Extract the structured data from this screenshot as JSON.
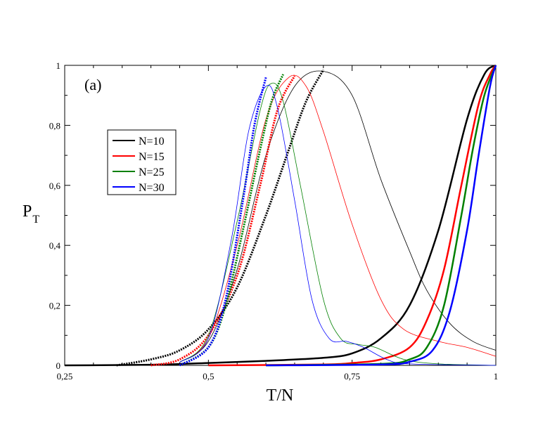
{
  "chart_data": {
    "type": "line",
    "panel_label": "(a)",
    "xlabel": "T/N",
    "ylabel_main": "P",
    "ylabel_sub": "T",
    "xlim": [
      0.25,
      1.0
    ],
    "ylim": [
      0,
      1.0
    ],
    "xticks": [
      0.25,
      0.5,
      0.75,
      1.0
    ],
    "xtick_labels": [
      "0,25",
      "0,5",
      "0,75",
      "1"
    ],
    "yticks": [
      0,
      0.2,
      0.4,
      0.6,
      0.8,
      1.0
    ],
    "ytick_labels": [
      "0",
      "0,2",
      "0,4",
      "0,6",
      "0,8",
      "1"
    ],
    "legend_position": "upper-left",
    "series": [
      {
        "name": "N=10",
        "color": "#000000",
        "thick_curve": [
          [
            0.25,
            0
          ],
          [
            0.4,
            0.002
          ],
          [
            0.5,
            0.008
          ],
          [
            0.6,
            0.015
          ],
          [
            0.7,
            0.025
          ],
          [
            0.75,
            0.04
          ],
          [
            0.8,
            0.09
          ],
          [
            0.85,
            0.2
          ],
          [
            0.9,
            0.45
          ],
          [
            0.95,
            0.82
          ],
          [
            0.98,
            0.97
          ],
          [
            1.0,
            1.0
          ]
        ],
        "dotted_rise": [
          [
            0.34,
            0
          ],
          [
            0.4,
            0.02
          ],
          [
            0.45,
            0.05
          ],
          [
            0.5,
            0.12
          ],
          [
            0.55,
            0.26
          ],
          [
            0.6,
            0.5
          ],
          [
            0.64,
            0.72
          ],
          [
            0.67,
            0.88
          ],
          [
            0.7,
            0.985
          ]
        ],
        "thin_peak": [
          [
            0.45,
            0.01
          ],
          [
            0.5,
            0.08
          ],
          [
            0.55,
            0.32
          ],
          [
            0.6,
            0.7
          ],
          [
            0.65,
            0.93
          ],
          [
            0.7,
            0.98
          ],
          [
            0.75,
            0.9
          ],
          [
            0.8,
            0.62
          ],
          [
            0.85,
            0.38
          ],
          [
            0.88,
            0.25
          ],
          [
            0.92,
            0.14
          ],
          [
            0.96,
            0.08
          ],
          [
            1.0,
            0.05
          ]
        ]
      },
      {
        "name": "N=15",
        "color": "#ff0000",
        "thick_curve": [
          [
            0.5,
            0
          ],
          [
            0.7,
            0.003
          ],
          [
            0.75,
            0.008
          ],
          [
            0.8,
            0.02
          ],
          [
            0.85,
            0.06
          ],
          [
            0.88,
            0.15
          ],
          [
            0.91,
            0.32
          ],
          [
            0.94,
            0.6
          ],
          [
            0.97,
            0.87
          ],
          [
            0.99,
            0.97
          ],
          [
            1.0,
            1.0
          ]
        ],
        "dotted_rise": [
          [
            0.4,
            0
          ],
          [
            0.45,
            0.02
          ],
          [
            0.5,
            0.1
          ],
          [
            0.55,
            0.3
          ],
          [
            0.59,
            0.6
          ],
          [
            0.62,
            0.85
          ],
          [
            0.65,
            0.965
          ]
        ],
        "thin_peak": [
          [
            0.45,
            0.01
          ],
          [
            0.5,
            0.09
          ],
          [
            0.55,
            0.4
          ],
          [
            0.6,
            0.82
          ],
          [
            0.64,
            0.96
          ],
          [
            0.67,
            0.93
          ],
          [
            0.7,
            0.78
          ],
          [
            0.75,
            0.47
          ],
          [
            0.8,
            0.22
          ],
          [
            0.84,
            0.12
          ],
          [
            0.9,
            0.08
          ],
          [
            0.95,
            0.06
          ],
          [
            1.0,
            0.03
          ]
        ]
      },
      {
        "name": "N=25",
        "color": "#008000",
        "thick_curve": [
          [
            0.6,
            0
          ],
          [
            0.8,
            0.005
          ],
          [
            0.85,
            0.02
          ],
          [
            0.88,
            0.06
          ],
          [
            0.91,
            0.2
          ],
          [
            0.94,
            0.5
          ],
          [
            0.96,
            0.72
          ],
          [
            0.98,
            0.9
          ],
          [
            1.0,
            1.0
          ]
        ],
        "dotted_rise": [
          [
            0.45,
            0
          ],
          [
            0.5,
            0.06
          ],
          [
            0.53,
            0.2
          ],
          [
            0.56,
            0.45
          ],
          [
            0.59,
            0.72
          ],
          [
            0.61,
            0.88
          ],
          [
            0.63,
            0.97
          ]
        ],
        "thin_peak": [
          [
            0.45,
            0.01
          ],
          [
            0.5,
            0.1
          ],
          [
            0.55,
            0.48
          ],
          [
            0.59,
            0.85
          ],
          [
            0.61,
            0.94
          ],
          [
            0.63,
            0.88
          ],
          [
            0.66,
            0.6
          ],
          [
            0.7,
            0.22
          ],
          [
            0.73,
            0.09
          ],
          [
            0.76,
            0.07
          ],
          [
            0.79,
            0.06
          ],
          [
            0.84,
            0.02
          ],
          [
            0.9,
            0.005
          ],
          [
            1.0,
            0
          ]
        ]
      },
      {
        "name": "N=30",
        "color": "#0000ff",
        "thick_curve": [
          [
            0.6,
            0
          ],
          [
            0.8,
            0.003
          ],
          [
            0.85,
            0.012
          ],
          [
            0.89,
            0.05
          ],
          [
            0.92,
            0.18
          ],
          [
            0.95,
            0.45
          ],
          [
            0.97,
            0.7
          ],
          [
            0.99,
            0.93
          ],
          [
            1.0,
            1.0
          ]
        ],
        "dotted_rise": [
          [
            0.45,
            0
          ],
          [
            0.5,
            0.06
          ],
          [
            0.53,
            0.22
          ],
          [
            0.56,
            0.55
          ],
          [
            0.58,
            0.8
          ],
          [
            0.6,
            0.96
          ]
        ],
        "thin_peak": [
          [
            0.45,
            0.01
          ],
          [
            0.5,
            0.09
          ],
          [
            0.54,
            0.42
          ],
          [
            0.57,
            0.78
          ],
          [
            0.6,
            0.93
          ],
          [
            0.62,
            0.86
          ],
          [
            0.65,
            0.55
          ],
          [
            0.68,
            0.22
          ],
          [
            0.71,
            0.09
          ],
          [
            0.74,
            0.08
          ],
          [
            0.77,
            0.06
          ],
          [
            0.81,
            0.02
          ],
          [
            0.85,
            0.005
          ],
          [
            1.0,
            0
          ]
        ]
      }
    ]
  }
}
